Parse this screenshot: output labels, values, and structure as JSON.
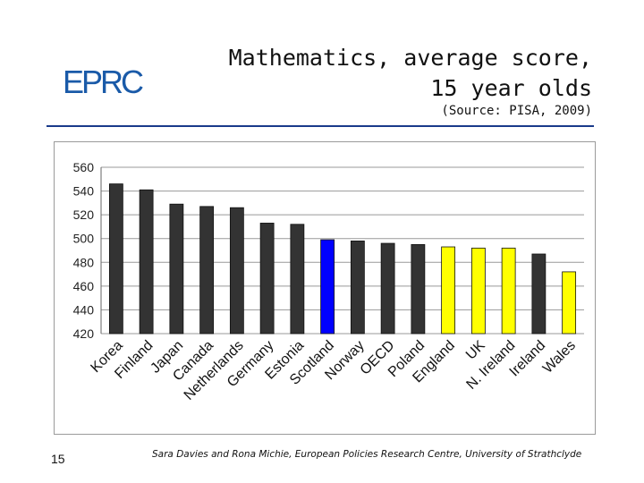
{
  "logo": {
    "text": "EPRC",
    "color": "#1a5aa8"
  },
  "title_line1": "Mathematics, average score,",
  "title_line2": "15 year olds",
  "subtitle": "(Source: PISA, 2009)",
  "page_number": "15",
  "footer": "Sara Davies and Rona Michie, European Policies Research Centre, University of Strathclyde",
  "colors": {
    "default": "#333333",
    "highlight_blue": "#0000ff",
    "highlight_yellow": "#ffff00",
    "grid": "#999999",
    "rule": "#1a3a8a"
  },
  "chart_data": {
    "type": "bar",
    "title": "Mathematics, average score, 15 year olds",
    "xlabel": "",
    "ylabel": "",
    "ylim": [
      420,
      560
    ],
    "yticks": [
      420,
      440,
      460,
      480,
      500,
      520,
      540,
      560
    ],
    "grid": true,
    "categories": [
      "Korea",
      "Finland",
      "Japan",
      "Canada",
      "Netherlands",
      "Germany",
      "Estonia",
      "Scotland",
      "Norway",
      "OECD",
      "Poland",
      "England",
      "UK",
      "N. Ireland",
      "Ireland",
      "Wales"
    ],
    "values": [
      546,
      541,
      529,
      527,
      526,
      513,
      512,
      499,
      498,
      496,
      495,
      493,
      492,
      492,
      487,
      472
    ],
    "bar_colors": [
      "#333333",
      "#333333",
      "#333333",
      "#333333",
      "#333333",
      "#333333",
      "#333333",
      "#0000ff",
      "#333333",
      "#333333",
      "#333333",
      "#ffff00",
      "#ffff00",
      "#ffff00",
      "#333333",
      "#ffff00"
    ]
  }
}
